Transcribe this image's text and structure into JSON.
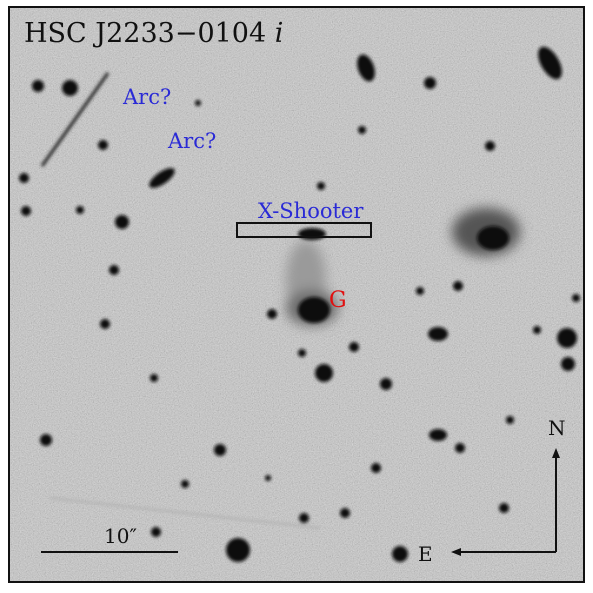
{
  "title": {
    "name": "HSC J2233−0104",
    "band": "i"
  },
  "labels": {
    "arc_upper": "Arc?",
    "arc_lower": "Arc?",
    "slit": "X-Shooter",
    "galaxy": "G"
  },
  "scale_bar": {
    "label": "10″"
  },
  "compass": {
    "north": "N",
    "east": "E"
  },
  "colors": {
    "sky": "#d3d3d3",
    "annotation_blue": "#2a2ad6",
    "galaxy_red": "#e01010",
    "ink": "#111111"
  }
}
